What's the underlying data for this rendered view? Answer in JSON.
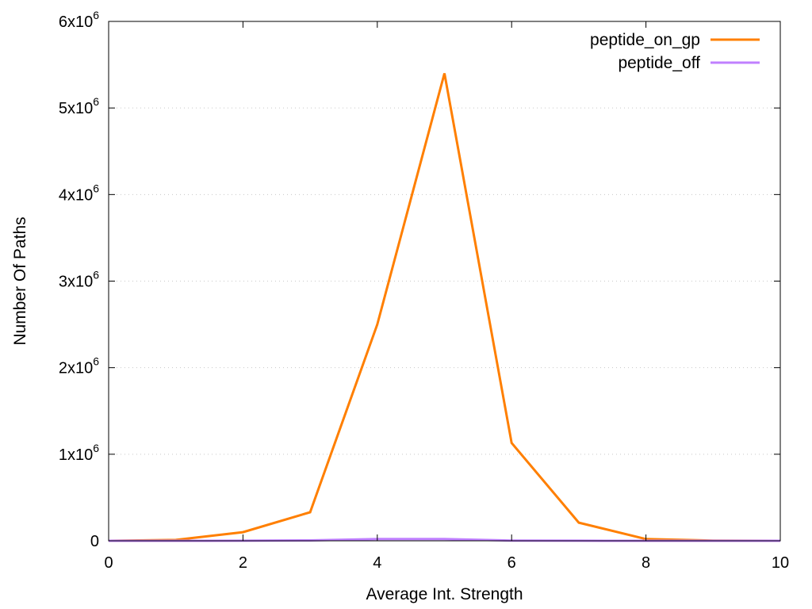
{
  "chart_data": {
    "type": "line",
    "title": "",
    "xlabel": "Average Int. Strength",
    "ylabel": "Number Of Paths",
    "xlim": [
      0,
      10
    ],
    "ylim": [
      0,
      6000000
    ],
    "x_ticks": [
      {
        "value": 0,
        "label": "0"
      },
      {
        "value": 2,
        "label": "2"
      },
      {
        "value": 4,
        "label": "4"
      },
      {
        "value": 6,
        "label": "6"
      },
      {
        "value": 8,
        "label": "8"
      },
      {
        "value": 10,
        "label": "10"
      }
    ],
    "y_ticks": [
      {
        "value": 0,
        "label": "0"
      },
      {
        "value": 1000000,
        "mantissa": "1x10",
        "exponent": "6"
      },
      {
        "value": 2000000,
        "mantissa": "2x10",
        "exponent": "6"
      },
      {
        "value": 3000000,
        "mantissa": "3x10",
        "exponent": "6"
      },
      {
        "value": 4000000,
        "mantissa": "4x10",
        "exponent": "6"
      },
      {
        "value": 5000000,
        "mantissa": "5x10",
        "exponent": "6"
      },
      {
        "value": 6000000,
        "mantissa": "6x10",
        "exponent": "6"
      }
    ],
    "grid": true,
    "legend_position": "top-right",
    "series": [
      {
        "name": "peptide_on_gp",
        "color": "#ff7f00",
        "x": [
          0,
          1,
          2,
          3,
          4,
          5,
          6,
          7,
          8,
          9,
          10
        ],
        "values": [
          0,
          10000,
          100000,
          330000,
          2500000,
          5400000,
          1130000,
          210000,
          20000,
          3000,
          0
        ]
      },
      {
        "name": "peptide_off",
        "color": "#c080ff",
        "x": [
          0,
          1,
          2,
          3,
          4,
          5,
          6,
          7,
          8,
          9,
          10
        ],
        "values": [
          0,
          0,
          1000,
          5000,
          20000,
          20000,
          3000,
          500,
          0,
          0,
          0
        ]
      }
    ]
  }
}
